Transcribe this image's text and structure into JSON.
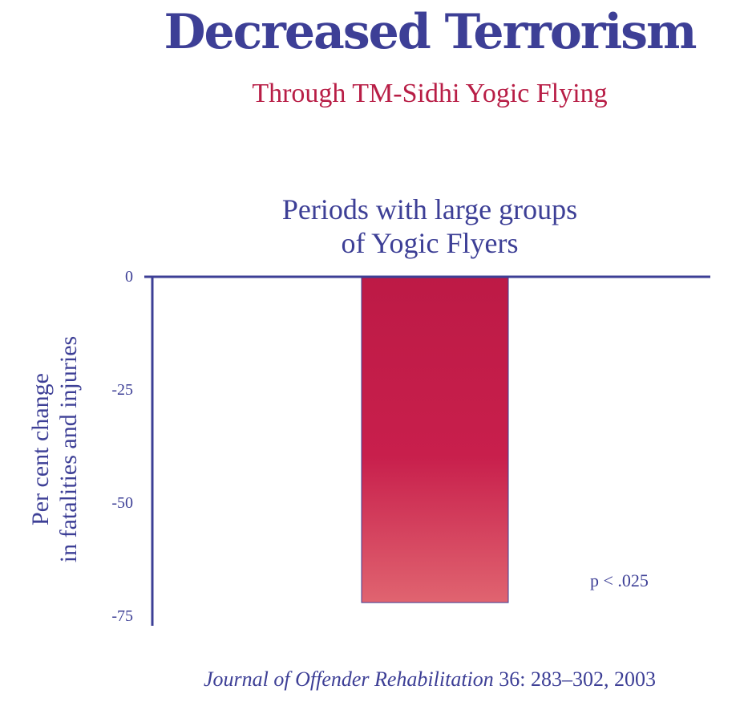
{
  "colors": {
    "title": "#3d3f96",
    "subtitle": "#b81e46",
    "axis": "#3d3f96",
    "text": "#3d3f96",
    "bar_top": "#bd1a46",
    "bar_bottom": "#e06470"
  },
  "header": {
    "title": "Decreased Terrorism",
    "subtitle": "Through TM-Sidhi Yogic Flying"
  },
  "chart_data": {
    "type": "bar",
    "categories": [
      "Periods with large groups of Yogic Flyers"
    ],
    "category_label_lines": [
      "Periods with large groups",
      "of Yogic Flyers"
    ],
    "values": [
      -72
    ],
    "ylabel_lines": [
      "Per cent change",
      "in fatalities and injuries"
    ],
    "ylim": [
      -75,
      0
    ],
    "yticks": [
      0,
      -25,
      -50,
      -75
    ],
    "ytick_labels": [
      "0",
      "-25",
      "-50",
      "-75"
    ],
    "annotation": "p < .025",
    "grid": false,
    "legend": "none"
  },
  "footer": {
    "journal": "Journal of Offender Rehabilitation",
    "details": " 36: 283–302, 2003"
  }
}
